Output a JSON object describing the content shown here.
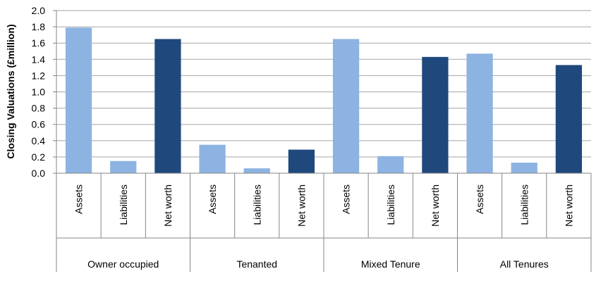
{
  "chart_data": {
    "type": "bar",
    "ylabel": "Closing Valuations (£million)",
    "ylim": [
      0,
      2.0
    ],
    "yticks": [
      "0.0",
      "0.2",
      "0.4",
      "0.6",
      "0.8",
      "1.0",
      "1.2",
      "1.4",
      "1.6",
      "1.8",
      "2.0"
    ],
    "grid": true,
    "groups": [
      {
        "name": "Owner occupied",
        "bars": [
          {
            "label": "Assets",
            "value": 1.79,
            "color": "#8db3e2"
          },
          {
            "label": "Liabilities",
            "value": 0.15,
            "color": "#8db3e2"
          },
          {
            "label": "Net worth",
            "value": 1.65,
            "color": "#1f497d"
          }
        ]
      },
      {
        "name": "Tenanted",
        "bars": [
          {
            "label": "Assets",
            "value": 0.35,
            "color": "#8db3e2"
          },
          {
            "label": "Liabilities",
            "value": 0.06,
            "color": "#8db3e2"
          },
          {
            "label": "Net worth",
            "value": 0.29,
            "color": "#1f497d"
          }
        ]
      },
      {
        "name": "Mixed Tenure",
        "bars": [
          {
            "label": "Assets",
            "value": 1.65,
            "color": "#8db3e2"
          },
          {
            "label": "Liabilities",
            "value": 0.21,
            "color": "#8db3e2"
          },
          {
            "label": "Net worth",
            "value": 1.43,
            "color": "#1f497d"
          }
        ]
      },
      {
        "name": "All Tenures",
        "bars": [
          {
            "label": "Assets",
            "value": 1.47,
            "color": "#8db3e2"
          },
          {
            "label": "Liabilities",
            "value": 0.13,
            "color": "#8db3e2"
          },
          {
            "label": "Net worth",
            "value": 1.33,
            "color": "#1f497d"
          }
        ]
      }
    ]
  }
}
